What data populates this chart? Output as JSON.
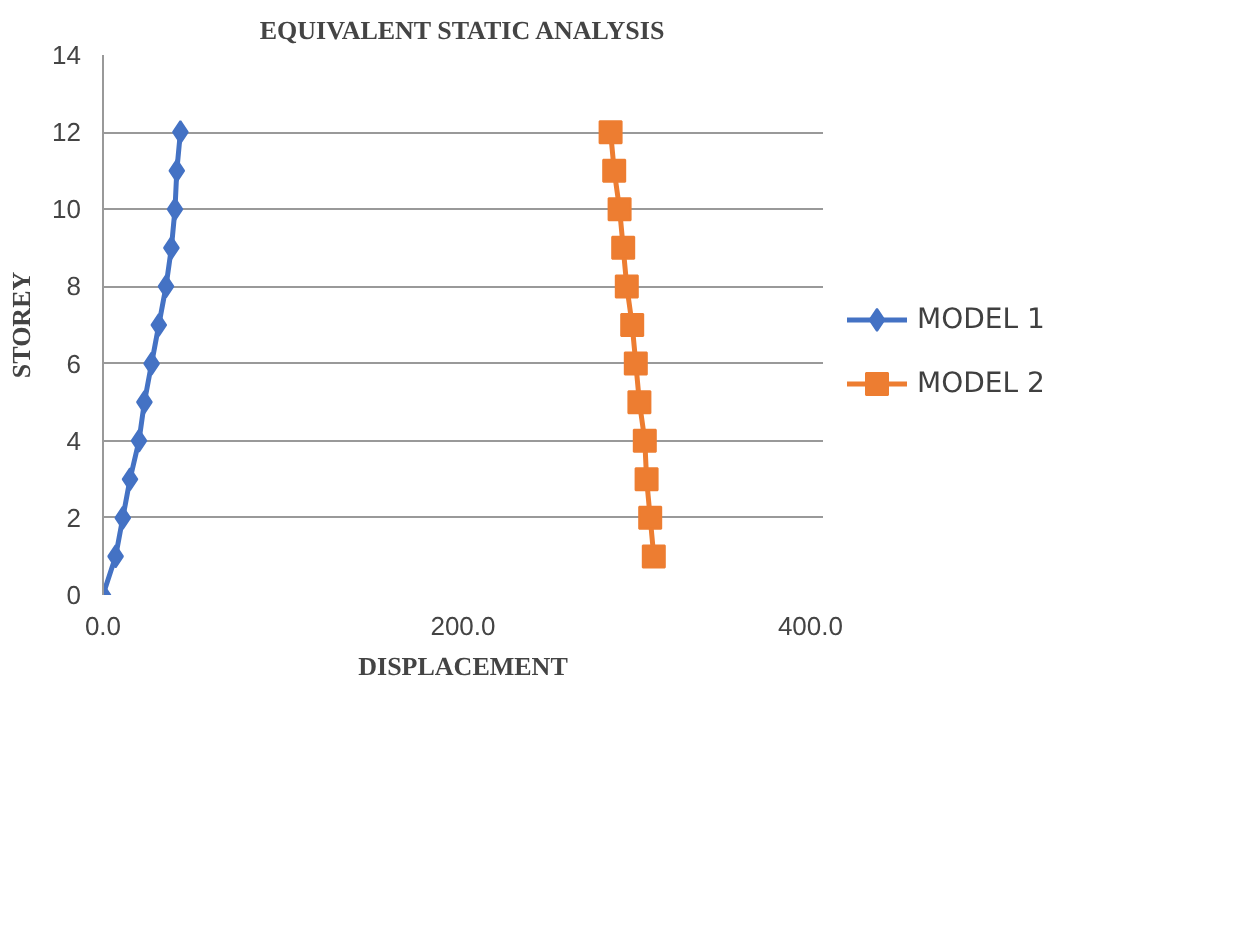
{
  "chart_data": {
    "type": "line",
    "title": "EQUIVALENT STATIC ANALYSIS",
    "xlabel": "DISPLACEMENT",
    "ylabel": "STOREY",
    "xlim": [
      0,
      400
    ],
    "xticks": [
      {
        "value": 0,
        "label": "0.0"
      },
      {
        "value": 200,
        "label": "200.0"
      },
      {
        "value": 400,
        "label": "400.0"
      }
    ],
    "ylim": [
      0,
      14
    ],
    "yticks": [
      0,
      2,
      4,
      6,
      8,
      10,
      12,
      14
    ],
    "grid": "y",
    "legend": "right",
    "series": [
      {
        "name": "MODEL 1",
        "color": "#4472c4",
        "marker": "diamond",
        "x": [
          0,
          7,
          11,
          15,
          20,
          23,
          27,
          31,
          35,
          38,
          40,
          41,
          43
        ],
        "values": [
          0,
          1,
          2,
          3,
          4,
          5,
          6,
          7,
          8,
          9,
          10,
          11,
          12
        ]
      },
      {
        "name": "MODEL 2",
        "color": "#ed7d31",
        "marker": "square",
        "x": [
          306,
          304,
          302,
          301,
          298,
          296,
          294,
          291,
          289,
          287,
          284,
          282
        ],
        "values": [
          1,
          2,
          3,
          4,
          5,
          6,
          7,
          8,
          9,
          10,
          11,
          12
        ]
      }
    ]
  }
}
